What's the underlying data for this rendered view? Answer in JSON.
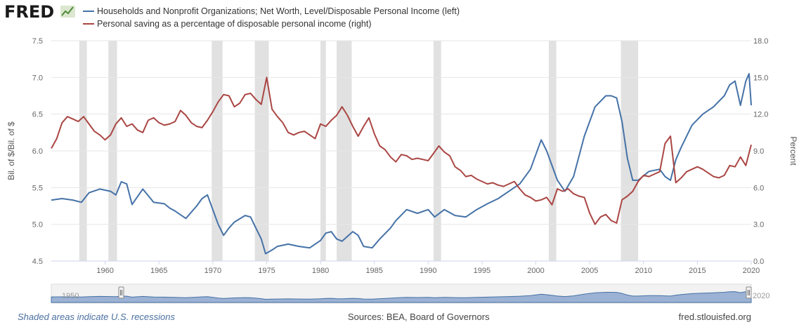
{
  "logo": {
    "text": "FRED"
  },
  "legend": {
    "left_series": "Households and Nonprofit Organizations; Net Worth, Level/Disposable Personal Income (left)",
    "right_series": "Personal saving as a percentage of disposable personal income (right)"
  },
  "footer": {
    "recessions_note": "Shaded areas indicate U.S. recessions",
    "sources": "Sources: BEA, Board of Governors",
    "site": "fred.stlouisfed.org"
  },
  "navigator": {
    "start_label": "1950",
    "end_label": "2020"
  },
  "colors": {
    "left_series": "#4572a7",
    "right_series": "#aa4643",
    "recession": "#e1e1e1",
    "navigator_fill": "#7f9cc9"
  },
  "chart_data": {
    "type": "line",
    "xlabel": "",
    "ylabel_left": "Bil. of $/Bil. of $",
    "ylabel_right": "Percent",
    "xlim": [
      1955,
      2020
    ],
    "ylim_left": [
      4.5,
      7.5
    ],
    "ylim_right": [
      0.0,
      18.0
    ],
    "x_ticks": [
      "1960",
      "1965",
      "1970",
      "1975",
      "1980",
      "1985",
      "1990",
      "1995",
      "2000",
      "2005",
      "2010",
      "2015",
      "2020"
    ],
    "y_ticks_left": [
      "4.5",
      "5.0",
      "5.5",
      "6.0",
      "6.5",
      "7.0",
      "7.5"
    ],
    "y_ticks_right": [
      "0.0",
      "3.0",
      "6.0",
      "9.0",
      "12.0",
      "15.0",
      "18.0"
    ],
    "grid": true,
    "recessions": [
      [
        1957.6,
        1958.3
      ],
      [
        1960.3,
        1961.1
      ],
      [
        1969.9,
        1970.9
      ],
      [
        1973.9,
        1975.2
      ],
      [
        1980.0,
        1980.5
      ],
      [
        1981.5,
        1982.9
      ],
      [
        1990.5,
        1991.2
      ],
      [
        2001.2,
        2001.9
      ],
      [
        2007.9,
        2009.5
      ]
    ],
    "series": [
      {
        "name": "Households and Nonprofit Organizations; Net Worth, Level/Disposable Personal Income (left)",
        "axis": "left",
        "x": [
          1955.0,
          1956.0,
          1957.0,
          1957.8,
          1958.5,
          1959.5,
          1960.5,
          1961.0,
          1961.5,
          1962.0,
          1962.5,
          1963.5,
          1964.5,
          1965.5,
          1966.0,
          1966.5,
          1967.5,
          1968.5,
          1969.0,
          1969.5,
          1970.0,
          1970.5,
          1971.0,
          1971.5,
          1972.0,
          1973.0,
          1973.5,
          1974.0,
          1974.5,
          1974.9,
          1975.5,
          1976.0,
          1977.0,
          1978.0,
          1979.0,
          1980.0,
          1980.5,
          1981.0,
          1981.5,
          1982.0,
          1983.0,
          1983.5,
          1984.0,
          1984.8,
          1985.5,
          1986.5,
          1987.0,
          1988.0,
          1989.0,
          1990.0,
          1990.6,
          1991.5,
          1992.5,
          1993.5,
          1994.5,
          1995.5,
          1996.5,
          1997.5,
          1998.5,
          1999.5,
          2000.0,
          2000.5,
          2001.0,
          2001.5,
          2002.0,
          2002.7,
          2003.5,
          2004.5,
          2005.5,
          2006.5,
          2007.0,
          2007.5,
          2008.0,
          2008.5,
          2009.0,
          2009.5,
          2010.5,
          2011.5,
          2012.0,
          2012.5,
          2013.0,
          2013.5,
          2014.5,
          2015.5,
          2016.5,
          2017.5,
          2018.0,
          2018.5,
          2019.0,
          2019.5,
          2019.8,
          2020.0
        ],
        "values": [
          5.33,
          5.35,
          5.33,
          5.3,
          5.43,
          5.48,
          5.45,
          5.4,
          5.58,
          5.55,
          5.27,
          5.48,
          5.3,
          5.28,
          5.22,
          5.18,
          5.08,
          5.25,
          5.35,
          5.4,
          5.2,
          5.0,
          4.85,
          4.95,
          5.03,
          5.12,
          5.1,
          4.95,
          4.8,
          4.6,
          4.65,
          4.7,
          4.73,
          4.7,
          4.68,
          4.78,
          4.88,
          4.9,
          4.8,
          4.77,
          4.9,
          4.85,
          4.7,
          4.68,
          4.8,
          4.95,
          5.05,
          5.2,
          5.15,
          5.2,
          5.1,
          5.2,
          5.12,
          5.1,
          5.2,
          5.28,
          5.35,
          5.45,
          5.55,
          5.75,
          5.95,
          6.15,
          6.0,
          5.8,
          5.6,
          5.45,
          5.65,
          6.2,
          6.6,
          6.75,
          6.75,
          6.72,
          6.4,
          5.9,
          5.6,
          5.6,
          5.72,
          5.75,
          5.65,
          5.6,
          5.88,
          6.05,
          6.35,
          6.5,
          6.6,
          6.75,
          6.9,
          6.95,
          6.62,
          6.95,
          7.05,
          6.62
        ]
      },
      {
        "name": "Personal saving as a percentage of disposable personal income (right)",
        "axis": "right",
        "x": [
          1955.0,
          1955.5,
          1956.0,
          1956.5,
          1957.0,
          1957.5,
          1958.0,
          1958.5,
          1959.0,
          1959.5,
          1960.0,
          1960.5,
          1961.0,
          1961.5,
          1962.0,
          1962.5,
          1963.0,
          1963.5,
          1964.0,
          1964.5,
          1965.0,
          1965.5,
          1966.0,
          1966.5,
          1967.0,
          1967.5,
          1968.0,
          1968.5,
          1969.0,
          1969.5,
          1970.0,
          1970.5,
          1971.0,
          1971.5,
          1972.0,
          1972.5,
          1973.0,
          1973.5,
          1974.0,
          1974.5,
          1975.0,
          1975.5,
          1976.0,
          1976.5,
          1977.0,
          1977.5,
          1978.0,
          1978.5,
          1979.0,
          1979.5,
          1980.0,
          1980.5,
          1981.0,
          1981.5,
          1982.0,
          1982.5,
          1983.0,
          1983.5,
          1984.0,
          1984.5,
          1985.0,
          1985.5,
          1986.0,
          1986.5,
          1987.0,
          1987.5,
          1988.0,
          1988.5,
          1989.0,
          1989.5,
          1990.0,
          1990.5,
          1991.0,
          1991.5,
          1992.0,
          1992.5,
          1993.0,
          1993.5,
          1994.0,
          1994.5,
          1995.0,
          1995.5,
          1996.0,
          1996.5,
          1997.0,
          1997.5,
          1998.0,
          1998.5,
          1999.0,
          1999.5,
          2000.0,
          2000.5,
          2001.0,
          2001.5,
          2002.0,
          2002.5,
          2003.0,
          2003.5,
          2004.0,
          2004.5,
          2005.0,
          2005.5,
          2006.0,
          2006.5,
          2007.0,
          2007.5,
          2008.0,
          2008.5,
          2009.0,
          2009.5,
          2010.0,
          2010.5,
          2011.0,
          2011.5,
          2012.0,
          2012.5,
          2013.0,
          2013.5,
          2014.0,
          2014.5,
          2015.0,
          2015.5,
          2016.0,
          2016.5,
          2017.0,
          2017.5,
          2018.0,
          2018.5,
          2019.0,
          2019.5,
          2020.0
        ],
        "values": [
          9.2,
          10.0,
          11.3,
          11.8,
          11.6,
          11.4,
          11.8,
          11.2,
          10.6,
          10.3,
          9.9,
          10.3,
          11.2,
          11.7,
          11.0,
          11.2,
          10.7,
          10.5,
          11.5,
          11.7,
          11.3,
          11.1,
          11.2,
          11.4,
          12.3,
          11.9,
          11.3,
          11.0,
          10.9,
          11.5,
          12.2,
          13.0,
          13.6,
          13.5,
          12.6,
          12.9,
          13.6,
          13.7,
          13.2,
          12.8,
          15.0,
          12.4,
          11.8,
          11.3,
          10.5,
          10.3,
          10.5,
          10.6,
          10.3,
          10.0,
          11.2,
          11.0,
          11.5,
          11.9,
          12.6,
          11.9,
          11.0,
          10.2,
          11.0,
          11.7,
          10.4,
          9.4,
          9.1,
          8.5,
          8.1,
          8.7,
          8.6,
          8.3,
          8.4,
          8.3,
          8.2,
          8.8,
          9.4,
          8.9,
          8.6,
          7.7,
          7.4,
          6.9,
          7.0,
          6.7,
          6.5,
          6.3,
          6.4,
          6.2,
          6.1,
          6.3,
          6.5,
          5.9,
          5.4,
          5.2,
          4.9,
          5.0,
          5.2,
          4.6,
          5.9,
          5.7,
          5.9,
          5.5,
          5.3,
          5.2,
          3.9,
          3.0,
          3.6,
          3.8,
          3.3,
          3.1,
          5.0,
          5.3,
          5.7,
          6.5,
          7.0,
          6.9,
          7.1,
          7.3,
          9.6,
          10.2,
          6.4,
          6.8,
          7.3,
          7.5,
          7.7,
          7.5,
          7.2,
          6.9,
          6.8,
          7.0,
          7.8,
          7.7,
          8.5,
          7.8,
          9.5
        ]
      }
    ]
  }
}
